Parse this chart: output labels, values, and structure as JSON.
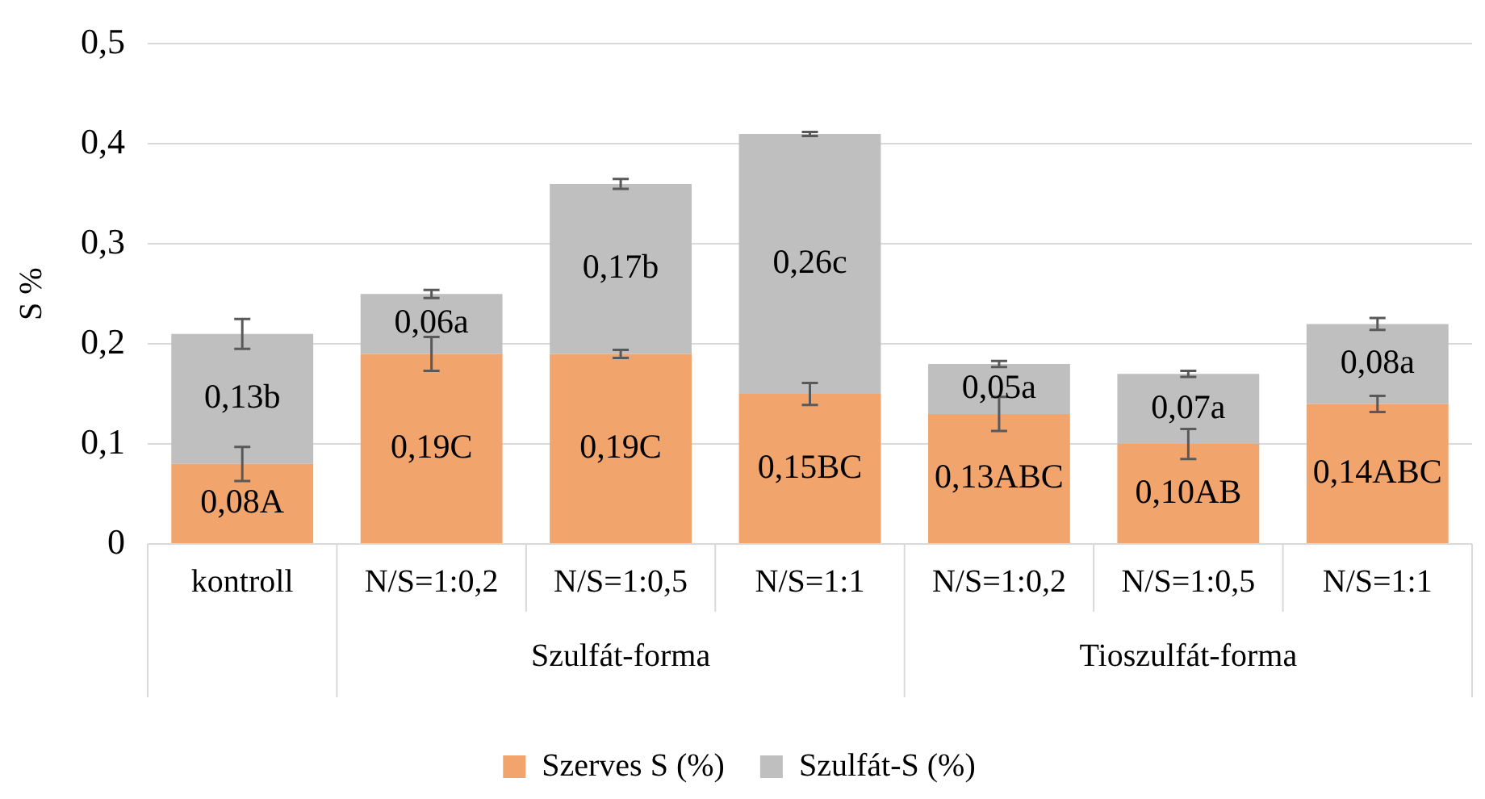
{
  "chart_data": {
    "type": "bar",
    "stacked": true,
    "ylabel": "S %",
    "categories": [
      "kontroll",
      "N/S=1:0,2",
      "N/S=1:0,5",
      "N/S=1:1",
      "N/S=1:0,2",
      "N/S=1:0,5",
      "N/S=1:1"
    ],
    "annotations": [
      "Szulfát-forma",
      "Tioszulfát-forma"
    ],
    "series": [
      {
        "name": "Szerves S (%)",
        "color": "#f1a46c",
        "values": [
          0.08,
          0.19,
          0.19,
          0.15,
          0.13,
          0.1,
          0.14
        ],
        "errors": [
          0.017,
          0.017,
          0.004,
          0.011,
          0.017,
          0.015,
          0.008
        ],
        "value_labels": [
          "0,08A",
          "0,19C",
          "0,19C",
          "0,15BC",
          "0,13ABC",
          "0,10AB",
          "0,14ABC"
        ]
      },
      {
        "name": "Szulfát-S (%)",
        "color": "#bfbfbf",
        "values": [
          0.13,
          0.06,
          0.17,
          0.26,
          0.05,
          0.07,
          0.08
        ],
        "errors": [
          0.015,
          0.004,
          0.005,
          0.002,
          0.003,
          0.003,
          0.006
        ],
        "value_labels": [
          "0,13b",
          "0,06a",
          "0,17b",
          "0,26c",
          "0,05a",
          "0,07a",
          "0,08a"
        ]
      }
    ],
    "ylim": [
      0,
      0.5
    ],
    "yticks": [
      {
        "value": 0,
        "label": "0"
      },
      {
        "value": 0.1,
        "label": "0,1"
      },
      {
        "value": 0.2,
        "label": "0,2"
      },
      {
        "value": 0.3,
        "label": "0,3"
      },
      {
        "value": 0.4,
        "label": "0,4"
      },
      {
        "value": 0.5,
        "label": "0,5"
      }
    ],
    "grid": "y",
    "legend": "bottom"
  }
}
